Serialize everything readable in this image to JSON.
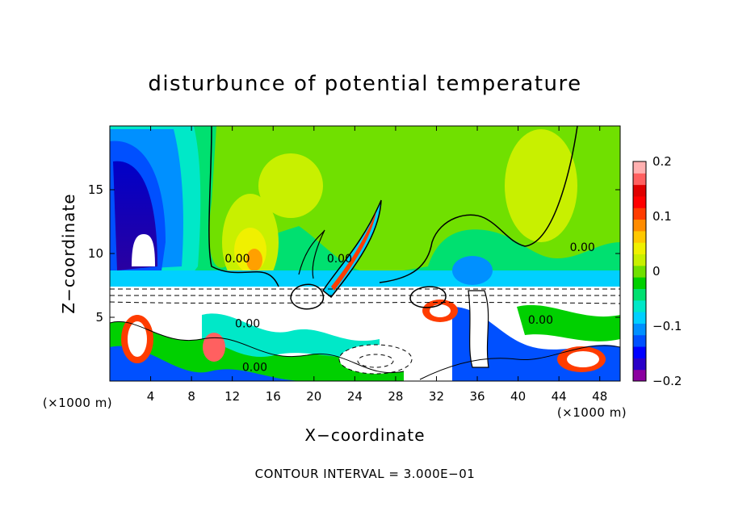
{
  "chart_data": {
    "type": "heatmap",
    "title": "disturbunce of potential temperature",
    "xlabel": "X−coordinate",
    "ylabel": "Z−coordinate",
    "x_unit": "(×1000 m)",
    "x_unit_right": "(×1000 m)",
    "xlim": [
      0,
      50
    ],
    "ylim": [
      0,
      20
    ],
    "x_ticks": [
      4,
      8,
      12,
      16,
      20,
      24,
      28,
      32,
      36,
      40,
      44,
      48
    ],
    "y_ticks": [
      5,
      10,
      15
    ],
    "colorbar": {
      "range": [
        -0.2,
        0.2
      ],
      "ticks": [
        {
          "value": 0.2,
          "label": "0.2"
        },
        {
          "value": 0.1,
          "label": "0.1"
        },
        {
          "value": 0.0,
          "label": "0"
        },
        {
          "value": -0.1,
          "label": "−0.1"
        },
        {
          "value": -0.2,
          "label": "−0.2"
        }
      ],
      "colors": [
        "#8b00a0",
        "#2a00c8",
        "#0000ff",
        "#0050ff",
        "#0090ff",
        "#00d0ff",
        "#00e8c8",
        "#00e070",
        "#00d000",
        "#70e000",
        "#c8f000",
        "#f0f000",
        "#ffc800",
        "#ff8c00",
        "#ff3c00",
        "#ff0000",
        "#e00000",
        "#ff6060",
        "#ffb0b0"
      ]
    },
    "contour_labels": [
      {
        "x": 12.5,
        "y": 9.3,
        "text": "0.00"
      },
      {
        "x": 22.5,
        "y": 9.3,
        "text": "0.00"
      },
      {
        "x": 13.5,
        "y": 4.2,
        "text": "0.00"
      },
      {
        "x": 14.2,
        "y": 0.8,
        "text": "0.00"
      },
      {
        "x": 46.3,
        "y": 10.2,
        "text": "0.00"
      },
      {
        "x": 42.2,
        "y": 4.5,
        "text": "0.00"
      }
    ],
    "footnote": "CONTOUR INTERVAL = 3.000E−01"
  }
}
